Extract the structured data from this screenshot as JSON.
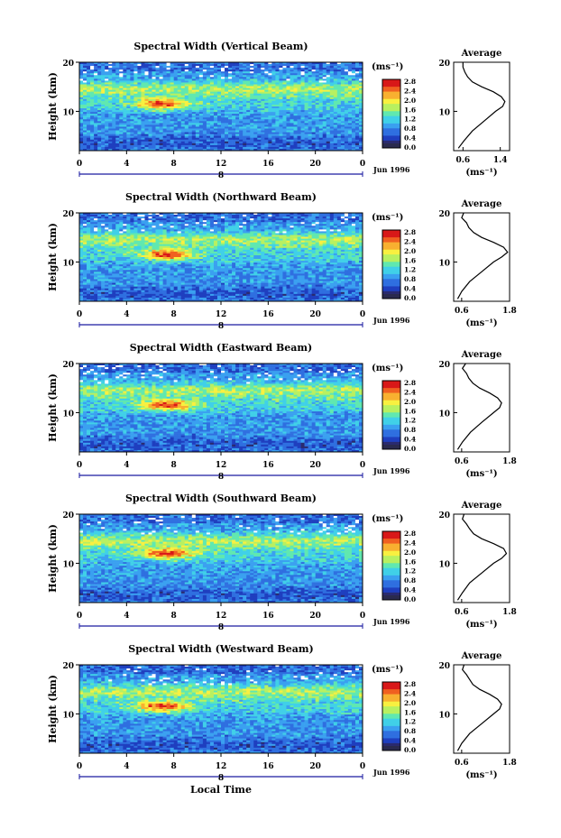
{
  "figure": {
    "xlabel": "Local Time",
    "date_label": "Jun 1996",
    "day_marker": "8",
    "colorbar_unit": "(ms⁻¹)",
    "colorbar_ticks": [
      "0.0",
      "0.4",
      "0.8",
      "1.2",
      "1.6",
      "2.0",
      "2.4",
      "2.8"
    ],
    "average_title": "Average",
    "average_xlabel": "(ms⁻¹)",
    "ylabel": "Height (km)"
  },
  "colors": {
    "scale": [
      "#2a2a6e",
      "#1f3fbf",
      "#2f6fe0",
      "#3aa0f0",
      "#40d0e8",
      "#60e8b0",
      "#b8f060",
      "#f8f040",
      "#f8b030",
      "#f06020",
      "#d81818"
    ]
  },
  "chart_data": [
    {
      "type": "heatmap",
      "title": "Spectral Width (Vertical Beam)",
      "x_ticks": [
        "0",
        "4",
        "8",
        "12",
        "16",
        "20",
        "0"
      ],
      "y_ticks": [
        "10",
        "20"
      ],
      "xlim": [
        0,
        24
      ],
      "ylim": [
        2,
        20
      ],
      "zlim": [
        0.0,
        2.8
      ],
      "core": {
        "hour": 7.0,
        "height_km": 11.5,
        "value": 2.8
      },
      "profile": {
        "title": "Average",
        "x_ticks": [
          "0.6",
          "1.4"
        ],
        "xlim": [
          0.4,
          1.6
        ],
        "heights_km": [
          2.5,
          4,
          6,
          8,
          10,
          11,
          12,
          13,
          14,
          15,
          16,
          17,
          18,
          19,
          20
        ],
        "values": [
          0.5,
          0.62,
          0.8,
          1.05,
          1.3,
          1.45,
          1.5,
          1.42,
          1.25,
          1.0,
          0.8,
          0.7,
          0.64,
          0.6,
          0.6
        ]
      }
    },
    {
      "type": "heatmap",
      "title": "Spectral Width (Northward Beam)",
      "x_ticks": [
        "0",
        "4",
        "8",
        "12",
        "16",
        "20",
        "0"
      ],
      "y_ticks": [
        "10",
        "20"
      ],
      "xlim": [
        0,
        24
      ],
      "ylim": [
        2,
        20
      ],
      "zlim": [
        0.0,
        2.8
      ],
      "core": {
        "hour": 7.5,
        "height_km": 11.5,
        "value": 2.8
      },
      "profile": {
        "title": "Average",
        "x_ticks": [
          "0.6",
          "1.8"
        ],
        "xlim": [
          0.4,
          1.8
        ],
        "heights_km": [
          2.5,
          4,
          6,
          8,
          10,
          11,
          12,
          13,
          14,
          15,
          16,
          17,
          18,
          19,
          20
        ],
        "values": [
          0.5,
          0.6,
          0.8,
          1.1,
          1.4,
          1.6,
          1.75,
          1.65,
          1.4,
          1.1,
          0.9,
          0.78,
          0.72,
          0.6,
          0.65
        ]
      }
    },
    {
      "type": "heatmap",
      "title": "Spectral Width (Eastward Beam)",
      "x_ticks": [
        "0",
        "4",
        "8",
        "12",
        "16",
        "20",
        "0"
      ],
      "y_ticks": [
        "10",
        "20"
      ],
      "xlim": [
        0,
        24
      ],
      "ylim": [
        2,
        20
      ],
      "zlim": [
        0.0,
        2.8
      ],
      "core": {
        "hour": 7.5,
        "height_km": 11.5,
        "value": 2.8
      },
      "profile": {
        "title": "Average",
        "x_ticks": [
          "0.6",
          "1.8"
        ],
        "xlim": [
          0.4,
          1.8
        ],
        "heights_km": [
          2.5,
          4,
          6,
          8,
          10,
          11,
          12,
          13,
          14,
          15,
          16,
          17,
          18,
          19,
          20
        ],
        "values": [
          0.5,
          0.62,
          0.82,
          1.1,
          1.4,
          1.55,
          1.6,
          1.5,
          1.3,
          1.05,
          0.88,
          0.78,
          0.72,
          0.62,
          0.7
        ]
      }
    },
    {
      "type": "heatmap",
      "title": "Spectral Width (Southward Beam)",
      "x_ticks": [
        "0",
        "4",
        "8",
        "12",
        "16",
        "20",
        "0"
      ],
      "y_ticks": [
        "10",
        "20"
      ],
      "xlim": [
        0,
        24
      ],
      "ylim": [
        2,
        20
      ],
      "zlim": [
        0.0,
        2.8
      ],
      "core": {
        "hour": 7.5,
        "height_km": 12.0,
        "value": 2.8
      },
      "profile": {
        "title": "Average",
        "x_ticks": [
          "0.6",
          "1.8"
        ],
        "xlim": [
          0.4,
          1.8
        ],
        "heights_km": [
          2.5,
          4,
          6,
          8,
          10,
          11,
          12,
          13,
          14,
          15,
          16,
          17,
          18,
          19,
          20
        ],
        "values": [
          0.5,
          0.62,
          0.8,
          1.1,
          1.4,
          1.6,
          1.72,
          1.65,
          1.4,
          1.1,
          0.9,
          0.8,
          0.72,
          0.62,
          0.66
        ]
      }
    },
    {
      "type": "heatmap",
      "title": "Spectral Width (Westward Beam)",
      "x_ticks": [
        "0",
        "4",
        "8",
        "12",
        "16",
        "20",
        "0"
      ],
      "y_ticks": [
        "10",
        "20"
      ],
      "xlim": [
        0,
        24
      ],
      "ylim": [
        2,
        20
      ],
      "zlim": [
        0.0,
        2.8
      ],
      "core": {
        "hour": 7.0,
        "height_km": 11.5,
        "value": 2.8
      },
      "profile": {
        "title": "Average",
        "x_ticks": [
          "0.6",
          "1.8"
        ],
        "xlim": [
          0.4,
          1.8
        ],
        "heights_km": [
          2.5,
          4,
          6,
          8,
          10,
          11,
          12,
          13,
          14,
          15,
          16,
          17,
          18,
          19,
          20
        ],
        "values": [
          0.5,
          0.6,
          0.8,
          1.1,
          1.4,
          1.55,
          1.6,
          1.5,
          1.3,
          1.05,
          0.88,
          0.8,
          0.72,
          0.62,
          0.66
        ]
      }
    }
  ]
}
